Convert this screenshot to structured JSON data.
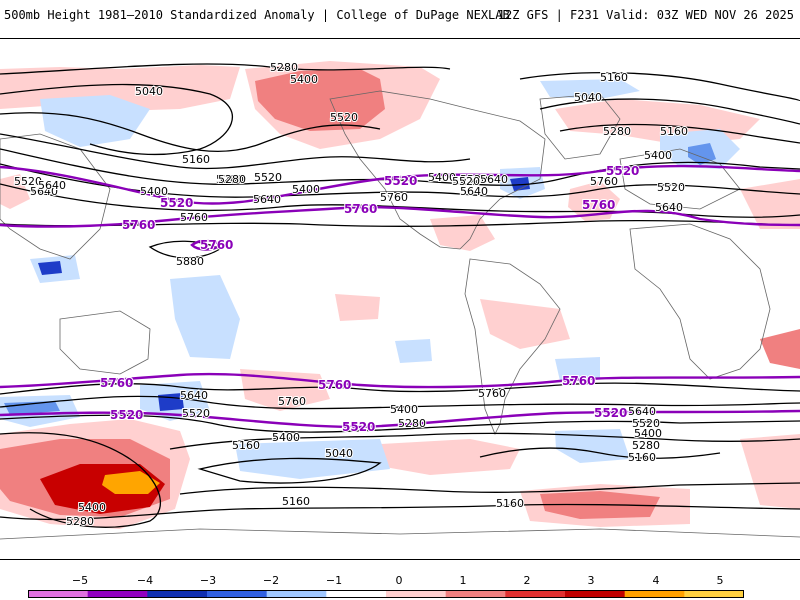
{
  "header": {
    "title": "500mb Height 1981–2010 Standardized Anomaly | College of DuPage NEXLAB",
    "run_info": "12Z GFS | F231 Valid: 03Z WED NOV 26 2025"
  },
  "map": {
    "contour_labels": [
      {
        "id": "c1",
        "text": "5280"
      },
      {
        "id": "c2",
        "text": "5400"
      },
      {
        "id": "c3",
        "text": "5040"
      },
      {
        "id": "c4",
        "text": "5520"
      },
      {
        "id": "c5",
        "text": "5160"
      },
      {
        "id": "c6",
        "text": "5040"
      },
      {
        "id": "c7",
        "text": "5280"
      },
      {
        "id": "c8",
        "text": "5160"
      },
      {
        "id": "c9",
        "text": "5520"
      },
      {
        "id": "c10",
        "text": "5640"
      },
      {
        "id": "c11",
        "text": "5400"
      },
      {
        "id": "c12",
        "text": "5520"
      },
      {
        "id": "c13",
        "text": "5400"
      },
      {
        "id": "c14",
        "text": "5640"
      },
      {
        "id": "c15",
        "text": "5280"
      },
      {
        "id": "c16",
        "text": "5400"
      },
      {
        "id": "c17",
        "text": "5760"
      },
      {
        "id": "c18",
        "text": "5640"
      },
      {
        "id": "c19",
        "text": "5520"
      },
      {
        "id": "c20",
        "text": "5640"
      },
      {
        "id": "c21",
        "text": "5760"
      },
      {
        "id": "c22",
        "text": "5280"
      },
      {
        "id": "c23",
        "text": "5160"
      },
      {
        "id": "c24",
        "text": "5400"
      },
      {
        "id": "c25",
        "text": "5520"
      },
      {
        "id": "c26",
        "text": "5640"
      },
      {
        "id": "c27",
        "text": "5880"
      },
      {
        "id": "c28",
        "text": "5520"
      },
      {
        "id": "c29",
        "text": "5760"
      },
      {
        "id": "c30",
        "text": "5640"
      },
      {
        "id": "c31",
        "text": "5520"
      },
      {
        "id": "c32",
        "text": "5760"
      },
      {
        "id": "c33",
        "text": "5400"
      },
      {
        "id": "c34",
        "text": "5160"
      },
      {
        "id": "c35",
        "text": "5040"
      },
      {
        "id": "c36",
        "text": "5400"
      },
      {
        "id": "c37",
        "text": "5280"
      },
      {
        "id": "c38",
        "text": "5160"
      },
      {
        "id": "c39",
        "text": "5640"
      },
      {
        "id": "c40",
        "text": "5520"
      },
      {
        "id": "c41",
        "text": "5400"
      },
      {
        "id": "c42",
        "text": "5280"
      },
      {
        "id": "c43",
        "text": "5760"
      },
      {
        "id": "c44",
        "text": "5640"
      },
      {
        "id": "c45",
        "text": "5520"
      },
      {
        "id": "c46",
        "text": "5400"
      },
      {
        "id": "c47",
        "text": "5280"
      },
      {
        "id": "c48",
        "text": "5160"
      },
      {
        "id": "c49",
        "text": "5760"
      },
      {
        "id": "c50",
        "text": "5160"
      }
    ],
    "highlight_labels": [
      {
        "id": "p1",
        "text": "5520"
      },
      {
        "id": "p2",
        "text": "5760"
      },
      {
        "id": "p3",
        "text": "5520"
      },
      {
        "id": "p4",
        "text": "5760"
      },
      {
        "id": "p5",
        "text": "5520"
      },
      {
        "id": "p6",
        "text": "5760"
      },
      {
        "id": "p7",
        "text": "5760"
      },
      {
        "id": "p8",
        "text": "5760"
      },
      {
        "id": "p9",
        "text": "5760"
      },
      {
        "id": "p10",
        "text": "5520"
      },
      {
        "id": "p11",
        "text": "5520"
      },
      {
        "id": "p12",
        "text": "5520"
      },
      {
        "id": "p13",
        "text": "5760"
      }
    ],
    "highlight_color": "#8a00b8",
    "positive_colors": [
      "#ffd0d0",
      "#f08080",
      "#c80000",
      "#ffa500"
    ],
    "negative_colors": [
      "#c8e0ff",
      "#6495ed",
      "#1e3cc8",
      "#7800b4"
    ]
  },
  "colorbar": {
    "ticks": [
      "−5",
      "−4",
      "−3",
      "−2",
      "−1",
      "0",
      "1",
      "2",
      "3",
      "4",
      "5"
    ],
    "colors": [
      "#e070e0",
      "#9000c0",
      "#1030b0",
      "#3060e0",
      "#a0c8ff",
      "#ffffff",
      "#ffd0d0",
      "#f08080",
      "#e03030",
      "#c00000",
      "#ffa000",
      "#ffd040"
    ]
  }
}
